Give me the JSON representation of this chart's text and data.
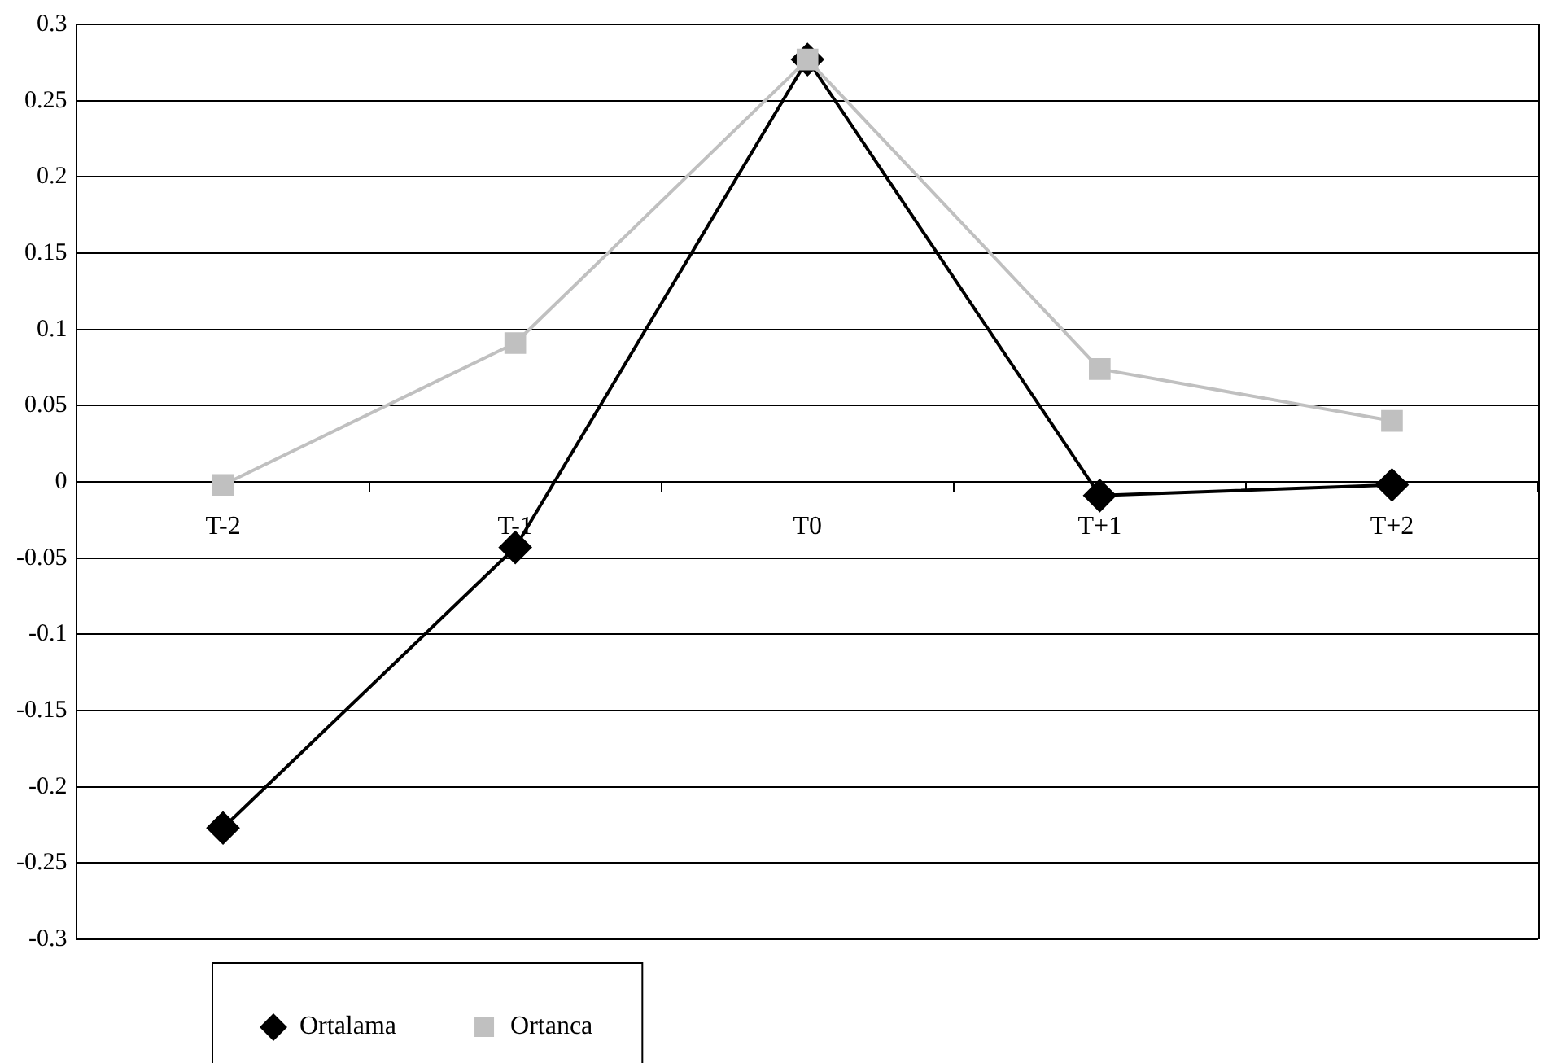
{
  "chart_data": {
    "type": "line",
    "categories": [
      "T-2",
      "T-1",
      "T0",
      "T+1",
      "T+2"
    ],
    "series": [
      {
        "name": "Ortalama",
        "color": "#000000",
        "marker": "diamond",
        "values": [
          -0.227,
          -0.043,
          0.277,
          -0.009,
          -0.002
        ]
      },
      {
        "name": "Ortanca",
        "color": "#c0c0c0",
        "marker": "square",
        "values": [
          -0.002,
          0.091,
          0.277,
          0.074,
          0.04
        ]
      }
    ],
    "ylim": [
      -0.3,
      0.3
    ],
    "yticks": [
      -0.3,
      -0.25,
      -0.2,
      -0.15,
      -0.1,
      -0.05,
      0,
      0.05,
      0.1,
      0.15,
      0.2,
      0.25,
      0.3
    ],
    "grid": "y",
    "legend": "bottom left",
    "line_style": "solid"
  }
}
